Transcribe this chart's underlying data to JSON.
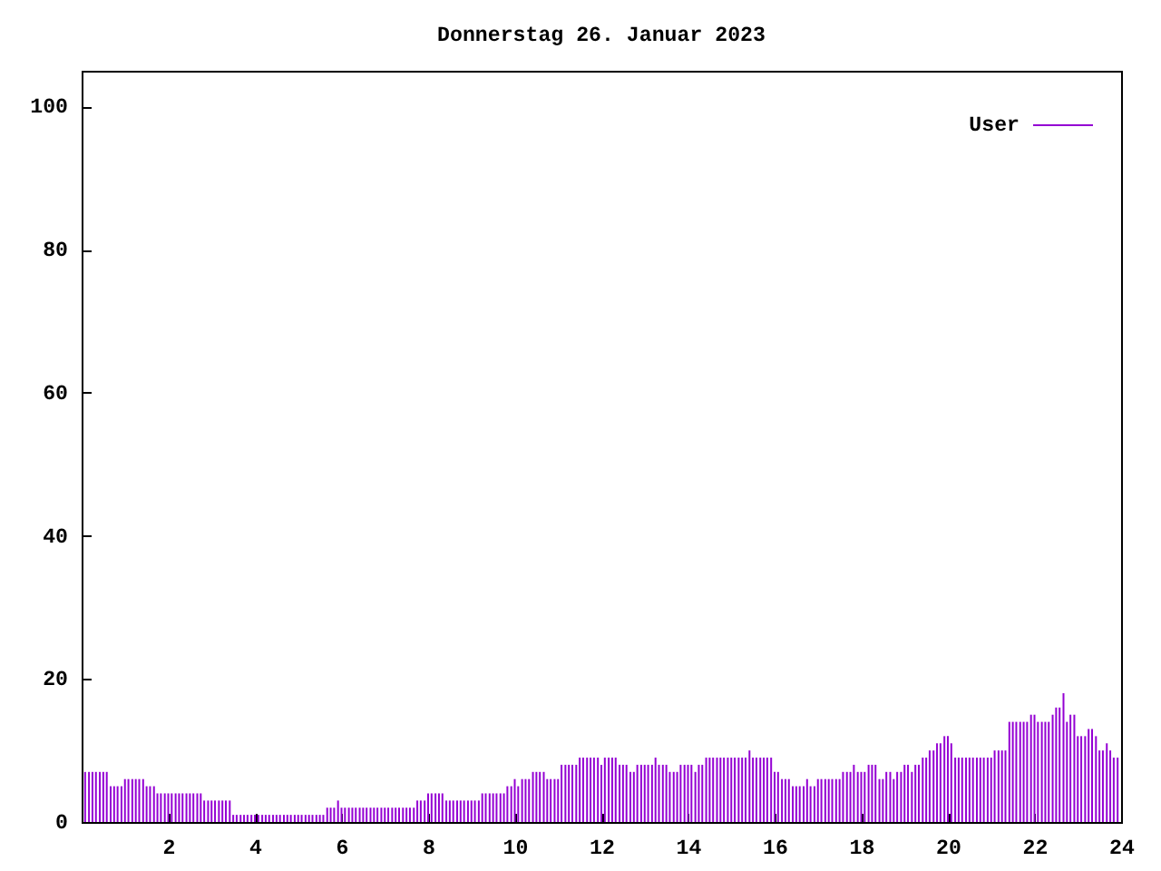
{
  "chart_data": {
    "type": "bar",
    "title": "Donnerstag 26. Januar 2023",
    "x": [
      0.08,
      0.17,
      0.25,
      0.33,
      0.42,
      0.5,
      0.58,
      0.67,
      0.75,
      0.83,
      0.92,
      1,
      1.08,
      1.17,
      1.25,
      1.33,
      1.42,
      1.5,
      1.58,
      1.67,
      1.75,
      1.83,
      1.92,
      2,
      2.08,
      2.17,
      2.25,
      2.33,
      2.42,
      2.5,
      2.58,
      2.67,
      2.75,
      2.83,
      2.92,
      3,
      3.08,
      3.17,
      3.25,
      3.33,
      3.42,
      3.5,
      3.58,
      3.67,
      3.75,
      3.83,
      3.92,
      4,
      4.08,
      4.17,
      4.25,
      4.33,
      4.42,
      4.5,
      4.58,
      4.67,
      4.75,
      4.83,
      4.92,
      5,
      5.08,
      5.17,
      5.25,
      5.33,
      5.42,
      5.5,
      5.58,
      5.67,
      5.75,
      5.83,
      5.92,
      6,
      6.08,
      6.17,
      6.25,
      6.33,
      6.42,
      6.5,
      6.58,
      6.67,
      6.75,
      6.83,
      6.92,
      7,
      7.08,
      7.17,
      7.25,
      7.33,
      7.42,
      7.5,
      7.58,
      7.67,
      7.75,
      7.83,
      7.92,
      8,
      8.08,
      8.17,
      8.25,
      8.33,
      8.42,
      8.5,
      8.58,
      8.67,
      8.75,
      8.83,
      8.92,
      9,
      9.08,
      9.17,
      9.25,
      9.33,
      9.42,
      9.5,
      9.58,
      9.67,
      9.75,
      9.83,
      9.92,
      10,
      10.08,
      10.17,
      10.25,
      10.33,
      10.42,
      10.5,
      10.58,
      10.67,
      10.75,
      10.83,
      10.92,
      11,
      11.08,
      11.17,
      11.25,
      11.33,
      11.42,
      11.5,
      11.58,
      11.67,
      11.75,
      11.83,
      11.92,
      12,
      12.08,
      12.17,
      12.25,
      12.33,
      12.42,
      12.5,
      12.58,
      12.67,
      12.75,
      12.83,
      12.92,
      13,
      13.08,
      13.17,
      13.25,
      13.33,
      13.42,
      13.5,
      13.58,
      13.67,
      13.75,
      13.83,
      13.92,
      14,
      14.08,
      14.17,
      14.25,
      14.33,
      14.42,
      14.5,
      14.58,
      14.67,
      14.75,
      14.83,
      14.92,
      15,
      15.08,
      15.17,
      15.25,
      15.33,
      15.42,
      15.5,
      15.58,
      15.67,
      15.75,
      15.83,
      15.92,
      16,
      16.08,
      16.17,
      16.25,
      16.33,
      16.42,
      16.5,
      16.58,
      16.67,
      16.75,
      16.83,
      16.92,
      17,
      17.08,
      17.17,
      17.25,
      17.33,
      17.42,
      17.5,
      17.58,
      17.67,
      17.75,
      17.83,
      17.92,
      18,
      18.08,
      18.17,
      18.25,
      18.33,
      18.42,
      18.5,
      18.58,
      18.67,
      18.75,
      18.83,
      18.92,
      19,
      19.08,
      19.17,
      19.25,
      19.33,
      19.42,
      19.5,
      19.58,
      19.67,
      19.75,
      19.83,
      19.92,
      20,
      20.08,
      20.17,
      20.25,
      20.33,
      20.42,
      20.5,
      20.58,
      20.67,
      20.75,
      20.83,
      20.92,
      21,
      21.08,
      21.17,
      21.25,
      21.33,
      21.42,
      21.5,
      21.58,
      21.67,
      21.75,
      21.83,
      21.92,
      22,
      22.08,
      22.17,
      22.25,
      22.33,
      22.42,
      22.5,
      22.58,
      22.67,
      22.75,
      22.83,
      22.92,
      23,
      23.08,
      23.17,
      23.25,
      23.33,
      23.42,
      23.5,
      23.58,
      23.67,
      23.75,
      23.83,
      23.92
    ],
    "series": [
      {
        "name": "User",
        "color": "#9400d3",
        "values": [
          7,
          7,
          7,
          7,
          7,
          7,
          7,
          5,
          5,
          5,
          5,
          6,
          6,
          6,
          6,
          6,
          6,
          5,
          5,
          5,
          4,
          4,
          4,
          4,
          4,
          4,
          4,
          4,
          4,
          4,
          4,
          4,
          4,
          3,
          3,
          3,
          3,
          3,
          3,
          3,
          3,
          1,
          1,
          1,
          1,
          1,
          1,
          1,
          1,
          1,
          1,
          1,
          1,
          1,
          1,
          1,
          1,
          1,
          1,
          1,
          1,
          1,
          1,
          1,
          1,
          1,
          1,
          2,
          2,
          2,
          3,
          2,
          2,
          2,
          2,
          2,
          2,
          2,
          2,
          2,
          2,
          2,
          2,
          2,
          2,
          2,
          2,
          2,
          2,
          2,
          2,
          2,
          3,
          3,
          3,
          4,
          4,
          4,
          4,
          4,
          3,
          3,
          3,
          3,
          3,
          3,
          3,
          3,
          3,
          3,
          4,
          4,
          4,
          4,
          4,
          4,
          4,
          5,
          5,
          6,
          5,
          6,
          6,
          6,
          7,
          7,
          7,
          7,
          6,
          6,
          6,
          6,
          8,
          8,
          8,
          8,
          8,
          9,
          9,
          9,
          9,
          9,
          9,
          8,
          9,
          9,
          9,
          9,
          8,
          8,
          8,
          7,
          7,
          8,
          8,
          8,
          8,
          8,
          9,
          8,
          8,
          8,
          7,
          7,
          7,
          8,
          8,
          8,
          8,
          7,
          8,
          8,
          9,
          9,
          9,
          9,
          9,
          9,
          9,
          9,
          9,
          9,
          9,
          9,
          10,
          9,
          9,
          9,
          9,
          9,
          9,
          7,
          7,
          6,
          6,
          6,
          5,
          5,
          5,
          5,
          6,
          5,
          5,
          6,
          6,
          6,
          6,
          6,
          6,
          6,
          7,
          7,
          7,
          8,
          7,
          7,
          7,
          8,
          8,
          8,
          6,
          6,
          7,
          7,
          6,
          7,
          7,
          8,
          8,
          7,
          8,
          8,
          9,
          9,
          10,
          10,
          11,
          11,
          12,
          12,
          11,
          9,
          9,
          9,
          9,
          9,
          9,
          9,
          9,
          9,
          9,
          9,
          10,
          10,
          10,
          10,
          14,
          14,
          14,
          14,
          14,
          14,
          15,
          15,
          14,
          14,
          14,
          14,
          15,
          16,
          16,
          18,
          14,
          15,
          15,
          12,
          12,
          12,
          13,
          13,
          12,
          10,
          10,
          11,
          10,
          9,
          9
        ]
      }
    ],
    "xlim": [
      0,
      24
    ],
    "xticks": [
      2,
      4,
      6,
      8,
      10,
      12,
      14,
      16,
      18,
      20,
      22,
      24
    ],
    "ylim": [
      0,
      105
    ],
    "yticks": [
      0,
      20,
      40,
      60,
      80,
      100
    ],
    "legend": "top right"
  }
}
